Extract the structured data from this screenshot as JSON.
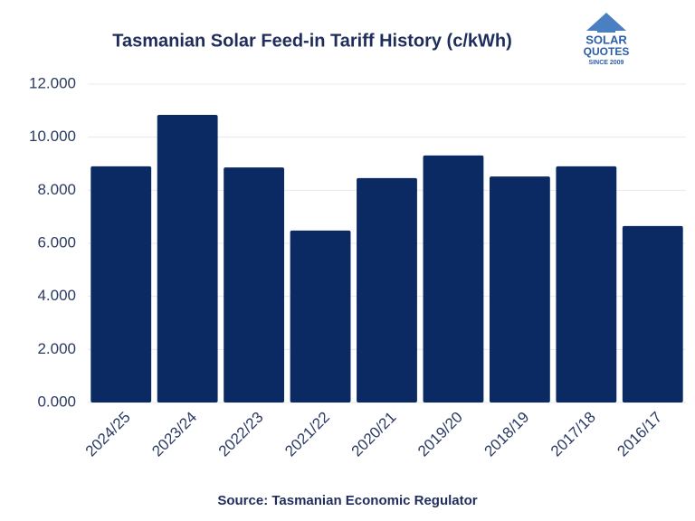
{
  "chart_data": {
    "type": "bar",
    "title": "Tasmanian Solar Feed-in Tariff History (c/kWh)",
    "source": "Source:  Tasmanian Economic Regulator",
    "logo": {
      "line1": "SOLAR",
      "line2": "QUOTES",
      "line3": "SINCE 2009"
    },
    "categories": [
      "2024/25",
      "2023/24",
      "2022/23",
      "2021/22",
      "2020/21",
      "2019/20",
      "2018/19",
      "2017/18",
      "2016/17"
    ],
    "values": [
      8.9,
      10.84,
      8.86,
      6.48,
      8.46,
      9.31,
      8.52,
      8.9,
      6.65
    ],
    "color": "#0b2a64",
    "ylim": [
      0,
      12
    ],
    "yticks": [
      {
        "value": 0,
        "label": "0.000"
      },
      {
        "value": 2,
        "label": "2.000"
      },
      {
        "value": 4,
        "label": "4.000"
      },
      {
        "value": 6,
        "label": "6.000"
      },
      {
        "value": 8,
        "label": "8.000"
      },
      {
        "value": 10,
        "label": "10.000"
      },
      {
        "value": 12,
        "label": "12.000"
      }
    ],
    "grid": true
  }
}
